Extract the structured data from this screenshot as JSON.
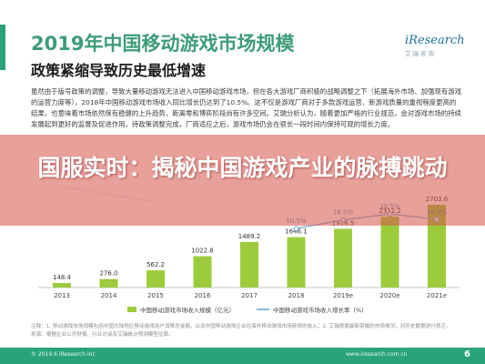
{
  "header": {
    "title": "2019年中国移动游戏市场规模",
    "subtitle": "政策紧缩导致历史最低增速",
    "logo_text": "iResearch",
    "logo_sub": "艾瑞咨询"
  },
  "paragraph": "虽然由于版号政策的调整，导致大量移动游戏无法进入中国移动游戏市场，但在各大游戏厂商积极的战略调整之下（拓展海外市场、加强现有游戏的运营力度等），2018年中国移动游戏市场收入同比增长仍达到了10.5%。这不仅是游戏厂商对于多款游戏运营、新游戏质量的重视程度更高的结果，也意味着市场依然保有稳健的上升趋势，距离零和博弈阶段尚有许多空间。艾瑞分析认为，随着更加严格的行业规范，会对游戏市场的持续发展起到更好的监督及促进作用，待政策调整完成，厂商适应之后，游戏市场仍会在很长一段时间内保持可观的增长力度。",
  "overlay": {
    "text": "国服实时：揭秘中国游戏产业的脉搏跳动"
  },
  "chart_data": {
    "type": "bar",
    "categories": [
      "2013",
      "2014",
      "2015",
      "2016",
      "2017",
      "2018",
      "2019e",
      "2020e",
      "2021e"
    ],
    "values": [
      148.4,
      276.0,
      562.2,
      1022.8,
      1489.2,
      1646.1,
      1918.5,
      2312.2,
      2703.6
    ],
    "value_labels": [
      "148.4",
      "276.0",
      "562.2",
      "1022.8",
      "1489.2",
      "1646.1",
      "1918.5",
      "2312.2",
      "2703.6"
    ],
    "growth_rate": [
      null,
      null,
      null,
      null,
      null,
      10.5,
      16.5,
      20.5,
      16.9
    ],
    "growth_labels": [
      "",
      "",
      "",
      "",
      "",
      "10.5%",
      "16.5%",
      "20.5%",
      "16.9%"
    ],
    "series": [
      {
        "name": "中国移动游戏市场收入规模（亿元）",
        "type": "bar",
        "color": "#9ccc3c"
      },
      {
        "name": "中国移动游戏市场收入增长率（%）",
        "type": "line",
        "color": "#84b7d8"
      }
    ],
    "legend_position": "bottom",
    "grid": false
  },
  "notes": [
    "注释：1. 移动游戏市场规模包括中国大陆地区移动游戏用户消费总金额，以及中国移动游戏企业在海外移动游戏市场获得的收入；2. 艾瑞根据最新掌握的市场情况，对历史数据进行修正。",
    "来源：根据企业公开财报、行业访谈及艾瑞统计预测模型估算。"
  ],
  "footer": {
    "copyright": "© 2019.6 iResearch Inc",
    "site": "www.iresearch.com.cn",
    "page": "6"
  },
  "colors": {
    "accent": "#2aa37c",
    "bar": "#9ccc3c",
    "line": "#84b7d8",
    "banner": "#d65248"
  }
}
